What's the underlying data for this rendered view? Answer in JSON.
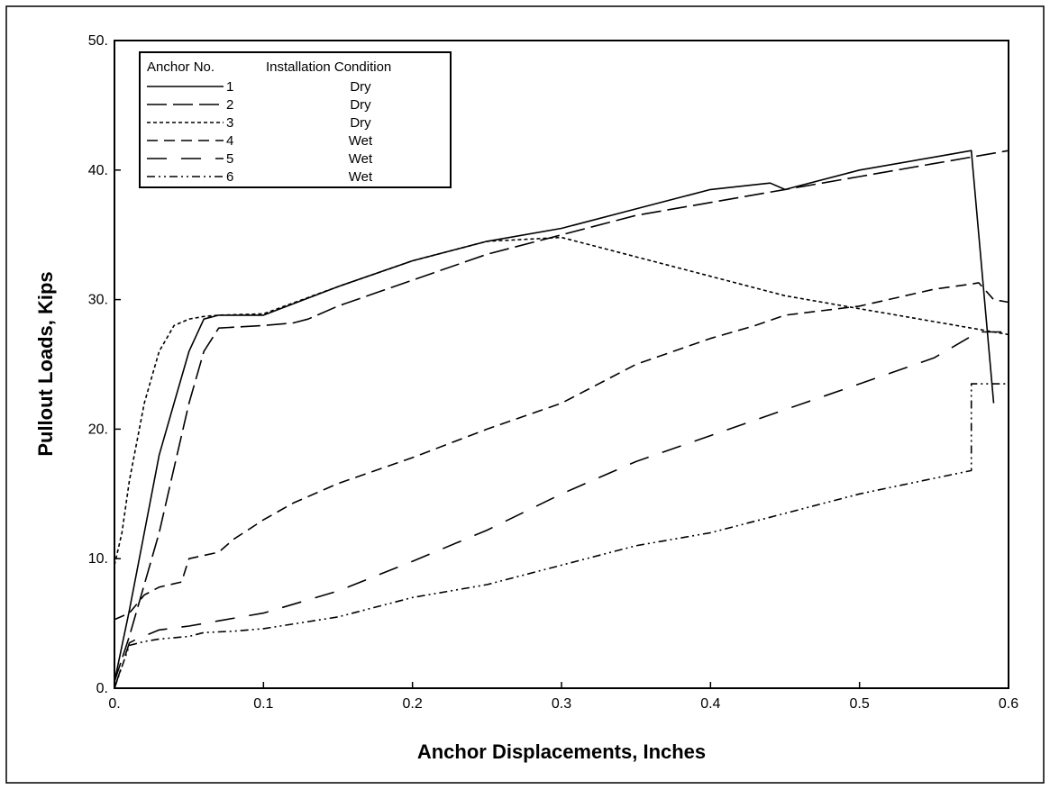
{
  "chart_data": {
    "type": "line",
    "title": "",
    "xlabel": "Anchor Displacements,  Inches",
    "ylabel": "Pullout Loads, Kips",
    "xlim": [
      0,
      0.6
    ],
    "ylim": [
      0,
      50
    ],
    "xticks": [
      0,
      0.1,
      0.2,
      0.3,
      0.4,
      0.5,
      0.6
    ],
    "xtick_labels": [
      "0.",
      "0.1",
      "0.2",
      "0.3",
      "0.4",
      "0.5",
      "0.6"
    ],
    "yticks": [
      0,
      10,
      20,
      30,
      40,
      50
    ],
    "ytick_labels": [
      "0.",
      "10.",
      "20.",
      "30.",
      "40.",
      "50."
    ],
    "grid": false,
    "legend": {
      "placement": "top-left",
      "header_col1": "Anchor No.",
      "header_col2": "Installation Condition",
      "entries": [
        {
          "number": "1",
          "condition": "Dry",
          "dash": "solid"
        },
        {
          "number": "2",
          "condition": "Dry",
          "dash": "long-dash"
        },
        {
          "number": "3",
          "condition": "Dry",
          "dash": "short-dash"
        },
        {
          "number": "4",
          "condition": "Wet",
          "dash": "medium-dash"
        },
        {
          "number": "5",
          "condition": "Wet",
          "dash": "long-gap-dash"
        },
        {
          "number": "6",
          "condition": "Wet",
          "dash": "dash-dot-dot"
        }
      ]
    },
    "series": [
      {
        "name": "1",
        "dash": "solid",
        "x": [
          0.0,
          0.01,
          0.02,
          0.03,
          0.04,
          0.05,
          0.06,
          0.07,
          0.1,
          0.15,
          0.2,
          0.25,
          0.3,
          0.35,
          0.4,
          0.44,
          0.45,
          0.5,
          0.55,
          0.575,
          0.59
        ],
        "y": [
          0.5,
          6,
          12,
          18,
          22,
          26,
          28.5,
          28.8,
          28.8,
          31,
          33,
          34.5,
          35.5,
          37,
          38.5,
          39,
          38.5,
          40,
          41,
          41.5,
          22
        ]
      },
      {
        "name": "2",
        "dash": "long-dash",
        "x": [
          0.0,
          0.01,
          0.02,
          0.03,
          0.04,
          0.05,
          0.06,
          0.07,
          0.1,
          0.12,
          0.13,
          0.15,
          0.2,
          0.25,
          0.3,
          0.35,
          0.4,
          0.45,
          0.5,
          0.55,
          0.6
        ],
        "y": [
          0.5,
          4,
          8,
          12,
          17,
          22,
          26,
          27.8,
          28,
          28.2,
          28.5,
          29.5,
          31.5,
          33.5,
          35,
          36.5,
          37.5,
          38.5,
          39.5,
          40.5,
          41.5
        ]
      },
      {
        "name": "3",
        "dash": "short-dash",
        "x": [
          0.0,
          0.005,
          0.01,
          0.015,
          0.02,
          0.025,
          0.03,
          0.04,
          0.05,
          0.06,
          0.07,
          0.1,
          0.15,
          0.2,
          0.25,
          0.3,
          0.35,
          0.4,
          0.45,
          0.5,
          0.55,
          0.6
        ],
        "y": [
          9.5,
          12,
          16,
          19,
          22,
          24,
          26,
          28,
          28.5,
          28.7,
          28.8,
          28.9,
          31,
          33,
          34.5,
          34.8,
          33.3,
          31.8,
          30.3,
          29.3,
          28.3,
          27.3
        ]
      },
      {
        "name": "4",
        "dash": "medium-dash",
        "x": [
          0.0,
          0.01,
          0.02,
          0.03,
          0.045,
          0.05,
          0.07,
          0.08,
          0.1,
          0.12,
          0.15,
          0.2,
          0.25,
          0.3,
          0.35,
          0.4,
          0.43,
          0.45,
          0.5,
          0.55,
          0.575,
          0.58,
          0.59,
          0.6
        ],
        "y": [
          5.3,
          5.8,
          7.2,
          7.8,
          8.2,
          10,
          10.5,
          11.5,
          13,
          14.3,
          15.8,
          17.8,
          20,
          22,
          25,
          27,
          28,
          28.8,
          29.5,
          30.8,
          31.2,
          31.3,
          30,
          29.8
        ]
      },
      {
        "name": "5",
        "dash": "long-gap-dash",
        "x": [
          0.0,
          0.01,
          0.015,
          0.03,
          0.05,
          0.07,
          0.1,
          0.15,
          0.2,
          0.25,
          0.3,
          0.35,
          0.4,
          0.45,
          0.5,
          0.55,
          0.58,
          0.6
        ],
        "y": [
          0.0,
          3.5,
          3.8,
          4.5,
          4.8,
          5.2,
          5.8,
          7.5,
          9.8,
          12.2,
          15,
          17.5,
          19.5,
          21.5,
          23.5,
          25.5,
          27.5,
          27.5
        ]
      },
      {
        "name": "6",
        "dash": "dash-dot-dot",
        "x": [
          0.0,
          0.01,
          0.02,
          0.03,
          0.05,
          0.06,
          0.08,
          0.1,
          0.15,
          0.2,
          0.25,
          0.3,
          0.35,
          0.4,
          0.45,
          0.5,
          0.55,
          0.575,
          0.575,
          0.6
        ],
        "y": [
          0.0,
          3.3,
          3.6,
          3.8,
          4.0,
          4.3,
          4.4,
          4.6,
          5.5,
          7.0,
          8.0,
          9.5,
          11,
          12,
          13.5,
          15,
          16.2,
          16.8,
          23.5,
          23.5
        ]
      }
    ]
  }
}
